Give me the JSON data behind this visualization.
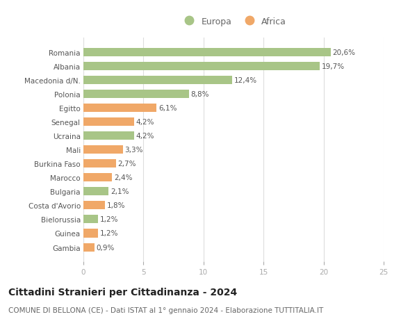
{
  "categories": [
    "Gambia",
    "Guinea",
    "Bielorussia",
    "Costa d'Avorio",
    "Bulgaria",
    "Marocco",
    "Burkina Faso",
    "Mali",
    "Ucraina",
    "Senegal",
    "Egitto",
    "Polonia",
    "Macedonia d/N.",
    "Albania",
    "Romania"
  ],
  "values": [
    0.9,
    1.2,
    1.2,
    1.8,
    2.1,
    2.4,
    2.7,
    3.3,
    4.2,
    4.2,
    6.1,
    8.8,
    12.4,
    19.7,
    20.6
  ],
  "labels": [
    "0,9%",
    "1,2%",
    "1,2%",
    "1,8%",
    "2,1%",
    "2,4%",
    "2,7%",
    "3,3%",
    "4,2%",
    "4,2%",
    "6,1%",
    "8,8%",
    "12,4%",
    "19,7%",
    "20,6%"
  ],
  "continents": [
    "Africa",
    "Africa",
    "Europa",
    "Africa",
    "Europa",
    "Africa",
    "Africa",
    "Africa",
    "Europa",
    "Africa",
    "Africa",
    "Europa",
    "Europa",
    "Europa",
    "Europa"
  ],
  "color_europa": "#a8c587",
  "color_africa": "#f0a868",
  "xlim": [
    0,
    25
  ],
  "xticks": [
    0,
    5,
    10,
    15,
    20,
    25
  ],
  "title": "Cittadini Stranieri per Cittadinanza - 2024",
  "subtitle": "COMUNE DI BELLONA (CE) - Dati ISTAT al 1° gennaio 2024 - Elaborazione TUTTITALIA.IT",
  "legend_europa": "Europa",
  "legend_africa": "Africa",
  "background_color": "#ffffff",
  "bar_height": 0.6,
  "title_fontsize": 10,
  "subtitle_fontsize": 7.5,
  "label_fontsize": 7.5,
  "tick_fontsize": 7.5,
  "legend_fontsize": 9
}
